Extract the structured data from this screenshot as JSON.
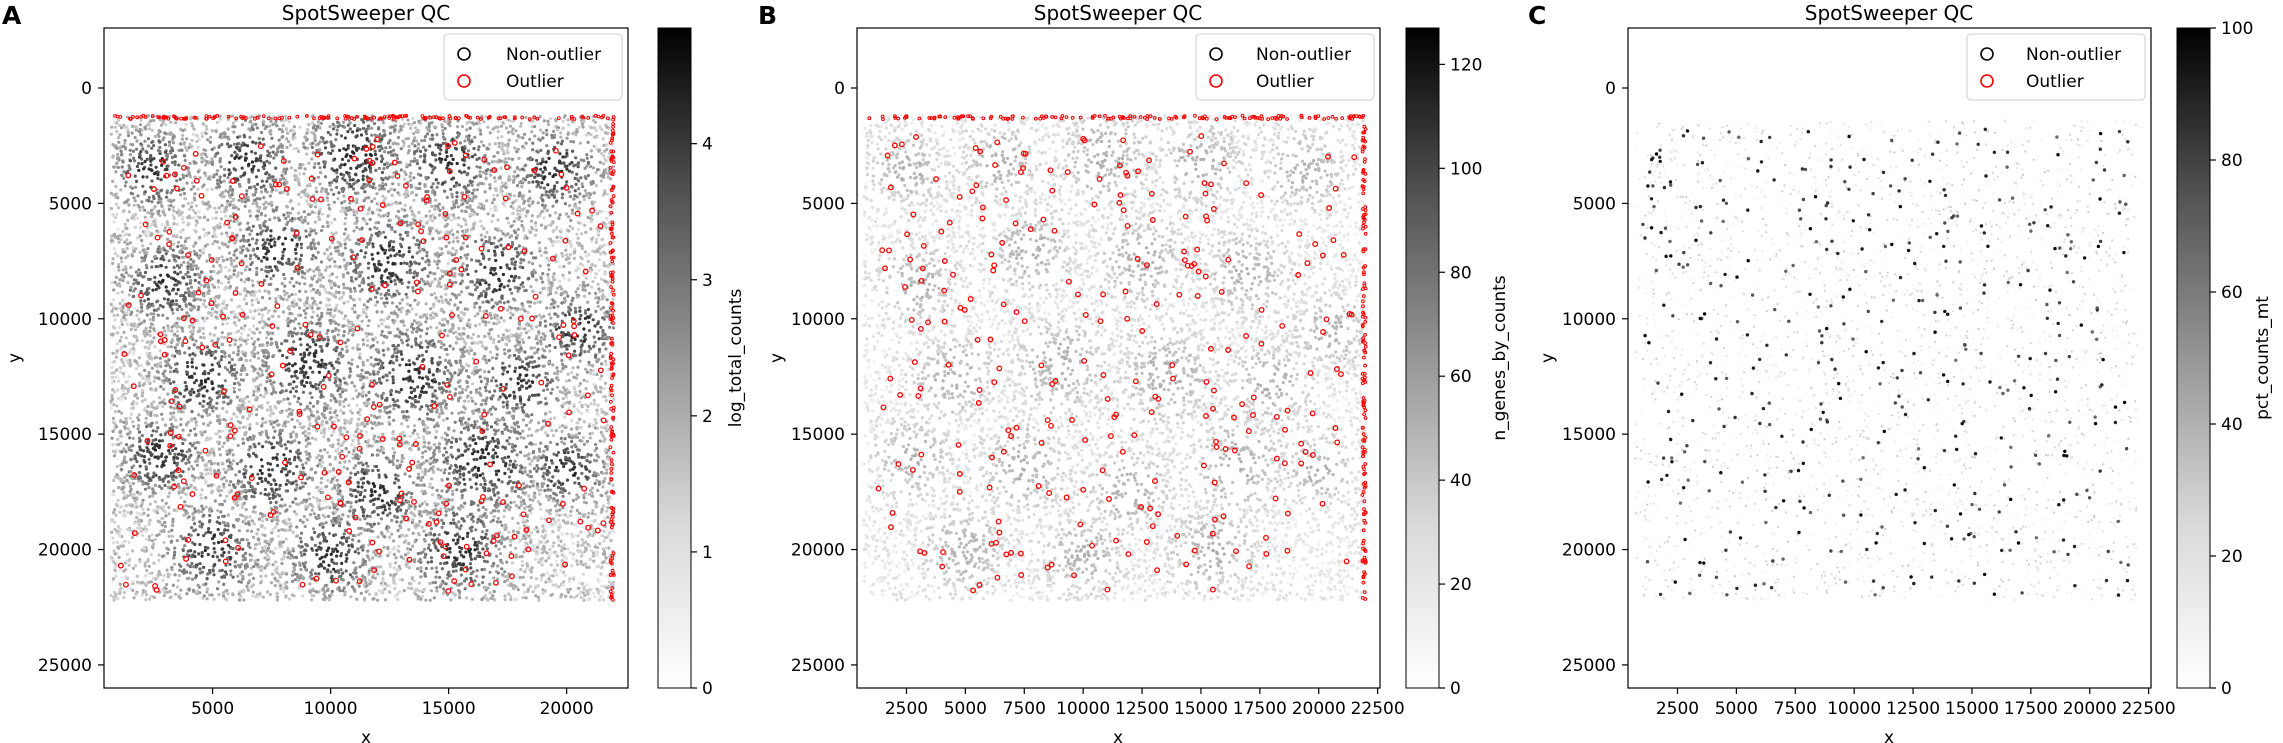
{
  "chart_data": [
    {
      "type": "scatter",
      "panel_label": "A",
      "title": "SpotSweeper QC",
      "xlabel": "x",
      "ylabel": "y",
      "y_inverted": true,
      "xlim": [
        400,
        22600
      ],
      "ylim": [
        26000,
        -2600
      ],
      "x_ticks": [
        5000,
        10000,
        15000,
        20000
      ],
      "x_tick_labels": [
        "5000",
        "10000",
        "15000",
        "20000"
      ],
      "y_ticks": [
        0,
        5000,
        10000,
        15000,
        20000,
        25000
      ],
      "y_tick_labels": [
        "0",
        "5000",
        "10000",
        "15000",
        "20000",
        "25000"
      ],
      "tissue_extent": {
        "x": [
          700,
          22000
        ],
        "y": [
          1200,
          22200
        ]
      },
      "legend": {
        "position": "top-right",
        "entries": [
          {
            "label": "Non-outlier",
            "color": "#000000"
          },
          {
            "label": "Outlier",
            "color": "#ff0000"
          }
        ]
      },
      "colorbar": {
        "label": "log_total_counts",
        "range": [
          0,
          4.85
        ],
        "ticks": [
          0,
          1,
          2,
          3,
          4
        ],
        "tick_labels": [
          "0",
          "1",
          "2",
          "3",
          "4"
        ],
        "colormap": "Greys"
      },
      "density_pattern": "high",
      "outlier_density": "medium",
      "series": [
        {
          "name": "Non-outlier",
          "marker": "open-circle",
          "color": "#000000"
        },
        {
          "name": "Outlier",
          "marker": "open-circle",
          "color": "#ff0000"
        }
      ]
    },
    {
      "type": "scatter",
      "panel_label": "B",
      "title": "SpotSweeper QC",
      "xlabel": "x",
      "ylabel": "y",
      "y_inverted": true,
      "xlim": [
        400,
        22600
      ],
      "ylim": [
        26000,
        -2600
      ],
      "x_ticks": [
        2500,
        5000,
        7500,
        10000,
        12500,
        15000,
        17500,
        20000,
        22500
      ],
      "x_tick_labels": [
        "2500",
        "5000",
        "7500",
        "10000",
        "12500",
        "15000",
        "17500",
        "20000",
        "22500"
      ],
      "y_ticks": [
        0,
        5000,
        10000,
        15000,
        20000,
        25000
      ],
      "y_tick_labels": [
        "0",
        "5000",
        "10000",
        "15000",
        "20000",
        "25000"
      ],
      "tissue_extent": {
        "x": [
          700,
          22000
        ],
        "y": [
          1200,
          22200
        ]
      },
      "legend": {
        "position": "top-right",
        "entries": [
          {
            "label": "Non-outlier",
            "color": "#000000"
          },
          {
            "label": "Outlier",
            "color": "#ff0000"
          }
        ]
      },
      "colorbar": {
        "label": "n_genes_by_counts",
        "range": [
          0,
          127
        ],
        "ticks": [
          0,
          20,
          40,
          60,
          80,
          100,
          120
        ],
        "tick_labels": [
          "0",
          "20",
          "40",
          "60",
          "80",
          "100",
          "120"
        ],
        "colormap": "Greys"
      },
      "density_pattern": "low",
      "outlier_density": "medium",
      "series": [
        {
          "name": "Non-outlier",
          "marker": "open-circle",
          "color": "#000000"
        },
        {
          "name": "Outlier",
          "marker": "open-circle",
          "color": "#ff0000"
        }
      ]
    },
    {
      "type": "scatter",
      "panel_label": "C",
      "title": "SpotSweeper QC",
      "xlabel": "x",
      "ylabel": "y",
      "y_inverted": true,
      "xlim": [
        400,
        22600
      ],
      "ylim": [
        26000,
        -2600
      ],
      "x_ticks": [
        2500,
        5000,
        7500,
        10000,
        12500,
        15000,
        17500,
        20000,
        22500
      ],
      "x_tick_labels": [
        "2500",
        "5000",
        "7500",
        "10000",
        "12500",
        "15000",
        "17500",
        "20000",
        "22500"
      ],
      "y_ticks": [
        0,
        5000,
        10000,
        15000,
        20000,
        25000
      ],
      "y_tick_labels": [
        "0",
        "5000",
        "10000",
        "15000",
        "20000",
        "25000"
      ],
      "tissue_extent": {
        "x": [
          700,
          22000
        ],
        "y": [
          1200,
          22200
        ]
      },
      "legend": {
        "position": "top-right",
        "entries": [
          {
            "label": "Non-outlier",
            "color": "#000000"
          },
          {
            "label": "Outlier",
            "color": "#ff0000"
          }
        ]
      },
      "colorbar": {
        "label": "pct_counts_mt",
        "range": [
          0,
          100
        ],
        "ticks": [
          0,
          20,
          40,
          60,
          80,
          100
        ],
        "tick_labels": [
          "0",
          "20",
          "40",
          "60",
          "80",
          "100"
        ],
        "colormap": "Greys"
      },
      "density_pattern": "sparse",
      "outlier_density": "none",
      "series": [
        {
          "name": "Non-outlier",
          "marker": "open-circle",
          "color": "#000000"
        },
        {
          "name": "Outlier",
          "marker": "open-circle",
          "color": "#ff0000"
        }
      ]
    }
  ]
}
